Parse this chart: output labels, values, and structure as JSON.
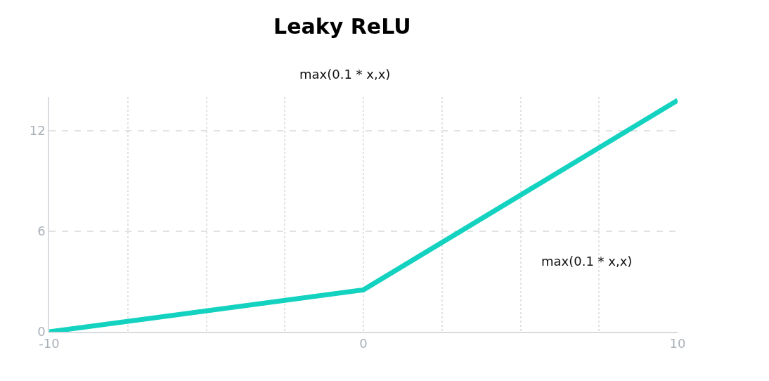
{
  "chart_data": {
    "type": "line",
    "title": "Leaky ReLU",
    "subtitle": "max(0.1 * x,x)",
    "annotations": [
      "max(0.1 * x,x)"
    ],
    "x": [
      -10,
      0,
      10
    ],
    "series": [
      {
        "color": "#14d2c0",
        "values": [
          0,
          2.5,
          13.8
        ]
      }
    ],
    "xlim": [
      -10,
      10
    ],
    "xticks": [
      -10,
      {
        "value": -7.5,
        "label": null
      },
      {
        "value": -5,
        "label": null
      },
      {
        "value": -2.5,
        "label": null
      },
      0,
      {
        "value": 2.5,
        "label": null
      },
      {
        "value": 5,
        "label": null
      },
      {
        "value": 7.5,
        "label": null
      },
      10
    ],
    "ylim": [
      0,
      14
    ],
    "yticks": [
      0,
      6,
      12
    ],
    "grid": true,
    "marker": "none",
    "line_style": "solid"
  }
}
